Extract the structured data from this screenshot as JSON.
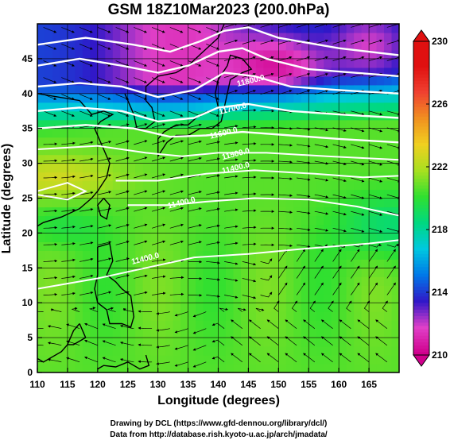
{
  "chart_data": {
    "type": "heatmap",
    "title": "GSM 18Z10Mar2023 (200.0hPa)",
    "xlabel": "Longitude (degrees)",
    "ylabel": "Latitude  (degrees)",
    "xlim": [
      110,
      170
    ],
    "ylim": [
      0,
      50
    ],
    "x_ticks": [
      "110",
      "115",
      "120",
      "125",
      "130",
      "135",
      "140",
      "145",
      "150",
      "155",
      "160",
      "165"
    ],
    "y_ticks": [
      "0",
      "5",
      "10",
      "15",
      "20",
      "25",
      "30",
      "35",
      "40",
      "45"
    ],
    "colorbar": {
      "min": 210,
      "max": 230,
      "tick_labels": [
        "210",
        "214",
        "218",
        "222",
        "226",
        "230"
      ],
      "colors": [
        "#d0008c",
        "#e040c8",
        "#3018c8",
        "#0078e8",
        "#00c8e0",
        "#00d880",
        "#30e030",
        "#a8e020",
        "#f0d020",
        "#f09020",
        "#f04030",
        "#e01010"
      ],
      "extend": "both"
    },
    "contour_labels": [
      {
        "text": "11800.0",
        "lon": 145.5,
        "lat": 41.5
      },
      {
        "text": "11700.0",
        "lon": 142.5,
        "lat": 37.5
      },
      {
        "text": "11600.0",
        "lon": 141.0,
        "lat": 34.0
      },
      {
        "text": "11500.0",
        "lon": 143.0,
        "lat": 31.0
      },
      {
        "text": "11400.0",
        "lon": 143.0,
        "lat": 29.0
      },
      {
        "text": "11400.0",
        "lon": 134.0,
        "lat": 24.0
      },
      {
        "text": "11400.0",
        "lon": 128.0,
        "lat": 16.0
      }
    ],
    "notes": {
      "grid": "on",
      "colorbar_position": "right",
      "overlays": [
        "temperature shading",
        "geopotential height contours",
        "wind streamlines",
        "coastlines"
      ]
    }
  },
  "footer": {
    "line1": "Drawing by DCL (https://www.gfd-dennou.org/library/dcl/)",
    "line2": "Data from http://database.rish.kyoto-u.ac.jp/arch/jmadata/"
  }
}
